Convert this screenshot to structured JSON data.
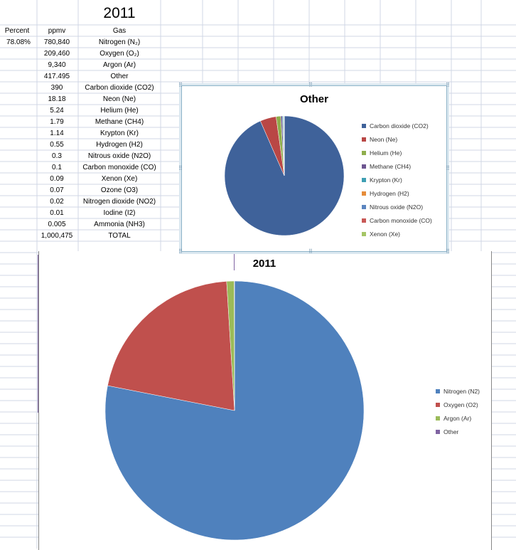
{
  "sheet": {
    "year_title": "2011",
    "headers": {
      "percent": "Percent",
      "ppmv": "ppmv",
      "gas": "Gas"
    },
    "rows": [
      {
        "percent": "78.08%",
        "ppmv": "780,840",
        "gas": "Nitrogen (N₂)"
      },
      {
        "percent": "",
        "ppmv": "209,460",
        "gas": "Oxygen (O₂)"
      },
      {
        "percent": "",
        "ppmv": "9,340",
        "gas": "Argon (Ar)"
      },
      {
        "percent": "",
        "ppmv": "417.495",
        "gas": "Other"
      },
      {
        "percent": "",
        "ppmv": "390",
        "gas": "Carbon dioxide (CO2)"
      },
      {
        "percent": "",
        "ppmv": "18.18",
        "gas": "Neon (Ne)"
      },
      {
        "percent": "",
        "ppmv": "5.24",
        "gas": "Helium (He)"
      },
      {
        "percent": "",
        "ppmv": "1.79",
        "gas": "Methane (CH4)"
      },
      {
        "percent": "",
        "ppmv": "1.14",
        "gas": "Krypton (Kr)"
      },
      {
        "percent": "",
        "ppmv": "0.55",
        "gas": "Hydrogen (H2)"
      },
      {
        "percent": "",
        "ppmv": "0.3",
        "gas": "Nitrous oxide (N2O)"
      },
      {
        "percent": "",
        "ppmv": "0.1",
        "gas": "Carbon monoxide (CO)"
      },
      {
        "percent": "",
        "ppmv": "0.09",
        "gas": "Xenon (Xe)"
      },
      {
        "percent": "",
        "ppmv": "0.07",
        "gas": "Ozone (O3)"
      },
      {
        "percent": "",
        "ppmv": "0.02",
        "gas": "Nitrogen dioxide (NO2)"
      },
      {
        "percent": "",
        "ppmv": "0.01",
        "gas": "Iodine (I2)"
      },
      {
        "percent": "",
        "ppmv": "0.005",
        "gas": "Ammonia (NH3)"
      },
      {
        "percent": "",
        "ppmv": "1,000,475",
        "gas": "TOTAL"
      }
    ]
  },
  "chart_data": [
    {
      "type": "pie",
      "title": "Other",
      "legend_position": "right",
      "categories": [
        "Carbon dioxide (CO2)",
        "Neon (Ne)",
        "Helium (He)",
        "Methane (CH4)",
        "Krypton (Kr)",
        "Hydrogen (H2)",
        "Nitrous oxide (N2O)",
        "Carbon monoxide (CO)",
        "Xenon (Xe)"
      ],
      "values": [
        390,
        18.18,
        5.24,
        1.79,
        1.14,
        0.55,
        0.3,
        0.1,
        0.09
      ],
      "colors": [
        "#3f629a",
        "#b94745",
        "#8fae4c",
        "#6d5590",
        "#3e9fb3",
        "#e68c3a",
        "#5b85bf",
        "#c85856",
        "#a5c566"
      ]
    },
    {
      "type": "pie",
      "title": "2011",
      "legend_position": "right",
      "categories": [
        "Nitrogen (N2)",
        "Oxygen (O2)",
        "Argon (Ar)",
        "Other"
      ],
      "values": [
        780840,
        209460,
        9340,
        417.495
      ],
      "colors": [
        "#4f81bd",
        "#c0504d",
        "#9bbb59",
        "#8064a2"
      ]
    }
  ]
}
